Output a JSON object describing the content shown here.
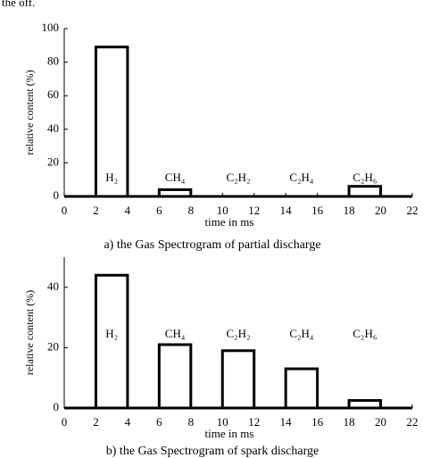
{
  "fragment": "the off.",
  "chart_data": [
    {
      "type": "bar",
      "title": "a) the Gas Spectrogram of partial discharge",
      "xlabel": "time in ms",
      "ylabel": "relative content (%)",
      "categories": [
        "H₂",
        "CH₄",
        "C₂H₂",
        "C₂H₄",
        "C₂H₆"
      ],
      "x_edges": [
        [
          2,
          4
        ],
        [
          6,
          8
        ],
        [
          10,
          12
        ],
        [
          14,
          16
        ],
        [
          18,
          20
        ]
      ],
      "values": [
        89,
        4,
        0,
        0,
        6
      ],
      "color": "#000000",
      "xlim": [
        0,
        22
      ],
      "xticks": [
        0,
        2,
        4,
        6,
        8,
        10,
        12,
        14,
        16,
        18,
        20,
        22
      ],
      "ylim": [
        0,
        100
      ],
      "yticks": [
        0,
        20,
        40,
        60,
        80,
        100
      ]
    },
    {
      "type": "bar",
      "title": "b) the Gas Spectrogram of spark discharge",
      "xlabel": "time in ms",
      "ylabel": "relative content (%)",
      "categories": [
        "H₂",
        "CH₄",
        "C₂H₂",
        "C₂H₄",
        "C₂H₆"
      ],
      "x_edges": [
        [
          2,
          4
        ],
        [
          6,
          8
        ],
        [
          10,
          12
        ],
        [
          14,
          16
        ],
        [
          18,
          20
        ]
      ],
      "values": [
        44,
        21,
        19,
        13,
        2.5
      ],
      "color": "#000000",
      "xlim": [
        0,
        22
      ],
      "xticks": [
        0,
        2,
        4,
        6,
        8,
        10,
        12,
        14,
        16,
        18,
        20,
        22
      ],
      "ylim": [
        0,
        50
      ],
      "yticks": [
        0,
        20,
        40
      ]
    }
  ]
}
